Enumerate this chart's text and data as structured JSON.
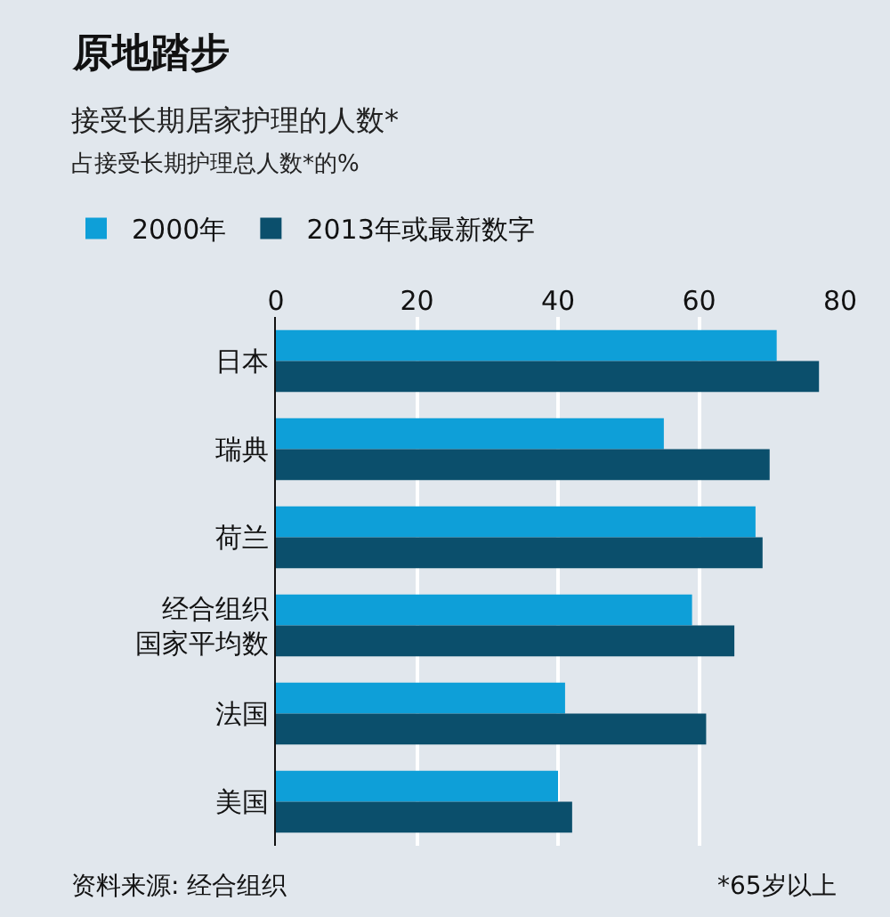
{
  "chart_data": {
    "type": "bar",
    "orientation": "horizontal",
    "title": "原地踏步",
    "subtitle": "接受长期居家护理的人数*",
    "xlabel": "占接受长期护理总人数*的%",
    "categories": [
      "日本",
      "瑞典",
      "荷兰",
      "经合组织国家平均数",
      "法国",
      "美国"
    ],
    "series": [
      {
        "name": "2000年",
        "color": "#0e9fd8",
        "values": [
          71,
          55,
          68,
          59,
          41,
          40
        ]
      },
      {
        "name": "2013年或最新数字",
        "color": "#0b4f6c",
        "values": [
          77,
          70,
          69,
          65,
          61,
          42
        ]
      }
    ],
    "xlim": [
      0,
      80
    ],
    "xticks": [
      0,
      20,
      40,
      60,
      80
    ],
    "grid": "x",
    "legend": "top left",
    "annotations": [
      "资料来源: 经合组织",
      "*65岁以上"
    ]
  }
}
